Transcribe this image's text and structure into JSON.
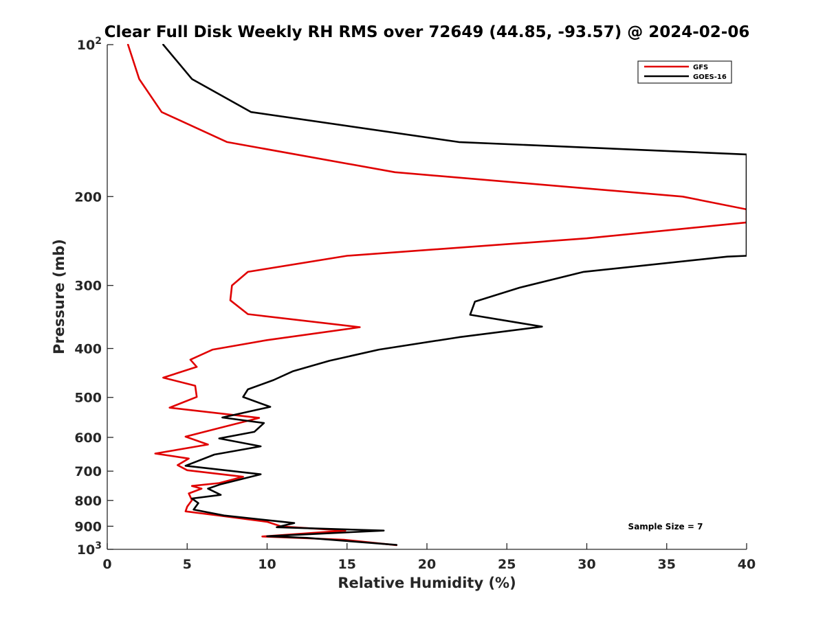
{
  "chart_data": {
    "type": "line",
    "title": "Clear Full Disk Weekly RH RMS over 72649 (44.85, -93.57) @ 2024-02-06",
    "xlabel": "Relative Humidity (%)",
    "ylabel": "Pressure (mb)",
    "xlim": [
      0,
      40
    ],
    "ylim": [
      100,
      1000
    ],
    "y_scale": "log",
    "y_reversed": true,
    "grid": false,
    "legend_position": "top-right",
    "x_ticks": [
      "0",
      "5",
      "10",
      "15",
      "20",
      "25",
      "30",
      "35",
      "40"
    ],
    "y_ticks": [
      {
        "value": 100,
        "base": "10",
        "exp": "2"
      },
      {
        "value": 200,
        "label": "200"
      },
      {
        "value": 300,
        "label": "300"
      },
      {
        "value": 400,
        "label": "400"
      },
      {
        "value": 500,
        "label": "500"
      },
      {
        "value": 600,
        "label": "600"
      },
      {
        "value": 700,
        "label": "700"
      },
      {
        "value": 800,
        "label": "800"
      },
      {
        "value": 900,
        "label": "900"
      },
      {
        "value": 1000,
        "base": "10",
        "exp": "3"
      }
    ],
    "annotation": "Sample Size = 7",
    "series": [
      {
        "name": "GFS",
        "color": "#e00000",
        "points": [
          [
            1.3,
            100
          ],
          [
            2.0,
            117
          ],
          [
            3.4,
            136
          ],
          [
            7.5,
            156
          ],
          [
            18.0,
            179
          ],
          [
            36.0,
            200
          ],
          [
            40.0,
            212
          ],
          [
            40.0,
            225
          ],
          [
            30.0,
            242
          ],
          [
            15.0,
            262
          ],
          [
            8.8,
            282
          ],
          [
            7.8,
            300
          ],
          [
            7.7,
            321
          ],
          [
            8.8,
            342
          ],
          [
            15.8,
            363
          ],
          [
            10.0,
            385
          ],
          [
            6.6,
            402
          ],
          [
            5.2,
            421
          ],
          [
            5.6,
            435
          ],
          [
            3.5,
            457
          ],
          [
            5.5,
            474
          ],
          [
            5.6,
            499
          ],
          [
            3.9,
            524
          ],
          [
            9.5,
            549
          ],
          [
            7.0,
            575
          ],
          [
            4.9,
            598
          ],
          [
            6.3,
            620
          ],
          [
            3.0,
            646
          ],
          [
            5.1,
            661
          ],
          [
            4.4,
            681
          ],
          [
            5.0,
            697
          ],
          [
            8.5,
            718
          ],
          [
            7.0,
            739
          ],
          [
            5.3,
            749
          ],
          [
            5.9,
            758
          ],
          [
            5.1,
            775
          ],
          [
            5.3,
            799
          ],
          [
            5.0,
            823
          ],
          [
            4.9,
            841
          ],
          [
            6.7,
            855
          ],
          [
            10.0,
            882
          ],
          [
            10.9,
            901
          ],
          [
            14.9,
            918
          ],
          [
            9.7,
            943
          ],
          [
            14.8,
            957
          ],
          [
            18.1,
            981
          ]
        ]
      },
      {
        "name": "GOES-16",
        "color": "#000000",
        "points": [
          [
            3.5,
            100
          ],
          [
            5.3,
            117
          ],
          [
            9.0,
            136
          ],
          [
            22.0,
            156
          ],
          [
            40.0,
            165
          ],
          [
            40.0,
            262
          ],
          [
            38.8,
            263
          ],
          [
            29.8,
            282
          ],
          [
            25.8,
            303
          ],
          [
            23.0,
            323
          ],
          [
            22.7,
            343
          ],
          [
            27.2,
            362
          ],
          [
            22.0,
            380
          ],
          [
            17.0,
            402
          ],
          [
            13.9,
            423
          ],
          [
            11.6,
            444
          ],
          [
            10.4,
            462
          ],
          [
            8.8,
            482
          ],
          [
            8.5,
            499
          ],
          [
            10.2,
            522
          ],
          [
            7.2,
            548
          ],
          [
            9.8,
            562
          ],
          [
            9.2,
            585
          ],
          [
            7.0,
            603
          ],
          [
            9.6,
            625
          ],
          [
            6.7,
            649
          ],
          [
            4.9,
            683
          ],
          [
            9.6,
            710
          ],
          [
            7.1,
            743
          ],
          [
            6.3,
            758
          ],
          [
            7.1,
            780
          ],
          [
            5.3,
            793
          ],
          [
            5.7,
            810
          ],
          [
            5.4,
            834
          ],
          [
            7.3,
            857
          ],
          [
            11.7,
            887
          ],
          [
            10.6,
            904
          ],
          [
            17.3,
            918
          ],
          [
            10.0,
            942
          ],
          [
            12.5,
            949
          ],
          [
            18.1,
            980
          ]
        ]
      }
    ]
  }
}
